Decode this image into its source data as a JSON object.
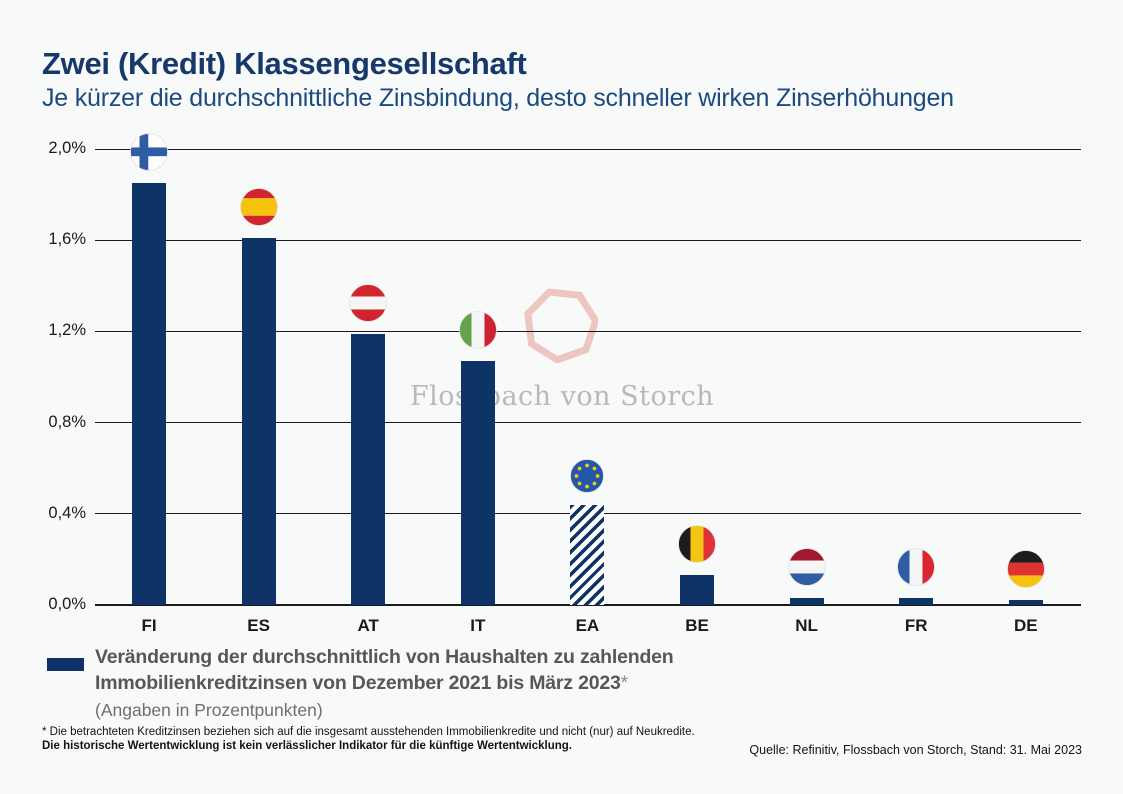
{
  "title": "Zwei (Kredit) Klassengesellschaft",
  "subtitle": "Je kürzer die durchschnittliche Zinsbindung, desto schneller wirken Zinserhöhungen",
  "chart_data": {
    "type": "bar",
    "categories": [
      "FI",
      "ES",
      "AT",
      "IT",
      "EA",
      "BE",
      "NL",
      "FR",
      "DE"
    ],
    "values": [
      1.85,
      1.61,
      1.19,
      1.07,
      0.44,
      0.13,
      0.03,
      0.03,
      0.02
    ],
    "flags": [
      "finland",
      "spain",
      "austria",
      "italy",
      "european-union",
      "belgium",
      "netherlands",
      "france",
      "germany"
    ],
    "hatched": [
      false,
      false,
      false,
      false,
      true,
      false,
      false,
      false,
      false
    ],
    "ylim": [
      0,
      2.0
    ],
    "ytick_labels": [
      "0,0%",
      "0,4%",
      "0,8%",
      "1,2%",
      "1,6%",
      "2,0%"
    ],
    "grid": true,
    "bar_color": "#0e3366",
    "unit": "Prozentpunkte"
  },
  "legend": {
    "line1": "Veränderung der durchschnittlich von Haushalten zu zahlenden",
    "line2": "Immobilienkreditzinsen von Dezember 2021 bis März 2023",
    "asterisk": "*",
    "line3": "(Angaben in Prozentpunkten)"
  },
  "footnote": {
    "line1": "* Die betrachteten Kreditzinsen beziehen sich auf die insgesamt ausstehenden Immobilienkredite und nicht (nur) auf Neukredite.",
    "line2": "Die historische Wertentwicklung ist kein verlässlicher Indikator für die künftige Wertentwicklung."
  },
  "source": "Quelle: Refinitiv, Flossbach von Storch, Stand: 31. Mai 2023",
  "watermark": {
    "brand": "Flossbach von Storch"
  },
  "colors": {
    "bar": "#0e3366",
    "title": "#16386b",
    "subtitle": "#1d4a80",
    "grid": "#1a1a1a",
    "legend_text": "#575756",
    "watermark_text": "#b9b9b9",
    "watermark_logo": "#edc6c2",
    "background": "#f8f9f9"
  }
}
